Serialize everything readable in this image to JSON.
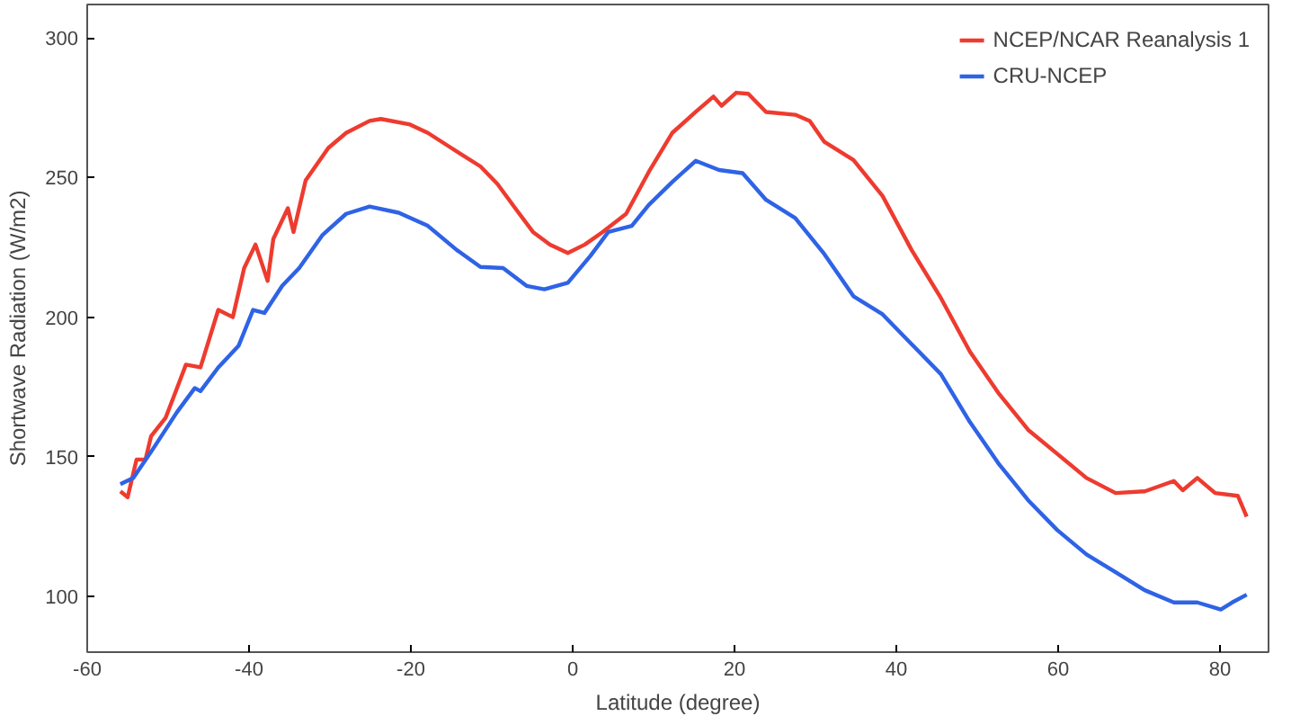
{
  "chart_data": {
    "type": "line",
    "xlabel": "Latitude (degree)",
    "ylabel": "Shortwave Radiation (W/m2)",
    "xlim": [
      -60,
      86
    ],
    "ylim": [
      80,
      312
    ],
    "xticks": [
      -60,
      -40,
      -20,
      0,
      20,
      40,
      60,
      80
    ],
    "yticks": [
      100,
      150,
      200,
      250,
      300
    ],
    "grid": false,
    "legend": "top right",
    "marker": "none",
    "line_style": "solid",
    "series": [
      {
        "name": "NCEP/NCAR Reanalysis 1",
        "color": "#ee3b2f",
        "x": [
          -55.9,
          -55,
          -53.9,
          -52.8,
          -52.1,
          -50.3,
          -48.9,
          -47.8,
          -46,
          -43.8,
          -42,
          -40.6,
          -39.2,
          -37.7,
          -37,
          -35.2,
          -34.5,
          -33,
          -30.2,
          -28,
          -25.1,
          -23.7,
          -20.1,
          -17.9,
          -15,
          -11.4,
          -9.3,
          -7.1,
          -4.9,
          -2.8,
          -0.6,
          1.5,
          3.7,
          6.6,
          9.4,
          12.3,
          15.2,
          17.4,
          18.4,
          20.2,
          21.7,
          23.9,
          27.5,
          29.3,
          31.1,
          34.7,
          38.3,
          41.9,
          45.5,
          49.1,
          52.7,
          56.3,
          59.9,
          63.5,
          67.1,
          70.7,
          74.3,
          75.4,
          77.2,
          79.4,
          82.2,
          83.3
        ],
        "values": [
          137.6,
          135.5,
          149,
          149,
          157.4,
          164,
          174.6,
          183,
          182,
          202.6,
          200,
          217.6,
          226,
          213,
          228,
          239,
          230.5,
          249,
          260.6,
          266,
          270.3,
          271,
          269,
          266,
          260.6,
          254,
          247.7,
          239,
          230.5,
          226,
          223,
          226,
          230.5,
          237,
          252,
          266,
          273.5,
          279,
          275.7,
          280.4,
          280,
          273.5,
          272.5,
          270.3,
          262.8,
          256.3,
          243.4,
          224,
          206.9,
          187.6,
          172.5,
          159.6,
          151,
          142.4,
          137,
          137.6,
          141.3,
          138,
          142.4,
          137,
          136,
          128.5
        ]
      },
      {
        "name": "CRU-NCEP",
        "color": "#2f63e6",
        "x": [
          -55.9,
          -54.3,
          -51.8,
          -48.9,
          -46.7,
          -46,
          -43.8,
          -41.3,
          -39.5,
          -38.1,
          -35.9,
          -33.8,
          -30.9,
          -28,
          -25.1,
          -21.5,
          -17.9,
          -14.3,
          -11.4,
          -8.6,
          -5.7,
          -3.5,
          -0.6,
          2.2,
          4.4,
          7.3,
          9.4,
          12.3,
          15.2,
          18.1,
          21,
          23.9,
          27.5,
          31.1,
          34.7,
          38.3,
          41.9,
          45.5,
          49.1,
          52.7,
          56.3,
          59.9,
          63.5,
          67.1,
          70.7,
          74.3,
          77.2,
          80.1,
          81.5,
          83.3
        ],
        "values": [
          140.2,
          142.4,
          153.1,
          166,
          174.6,
          173.5,
          182,
          189.7,
          202.6,
          201.5,
          211.2,
          217.6,
          229.5,
          237,
          239.6,
          237.4,
          232.7,
          224,
          218,
          217.6,
          211.2,
          210,
          212.3,
          222,
          230.5,
          232.7,
          240.2,
          248.4,
          256,
          252.7,
          251.6,
          242,
          235.5,
          222.6,
          207.5,
          201,
          190.3,
          179.6,
          162.4,
          147.3,
          134.4,
          123.7,
          115,
          108.6,
          102.2,
          97.8,
          97.8,
          95.3,
          97.8,
          100.6
        ]
      }
    ]
  }
}
